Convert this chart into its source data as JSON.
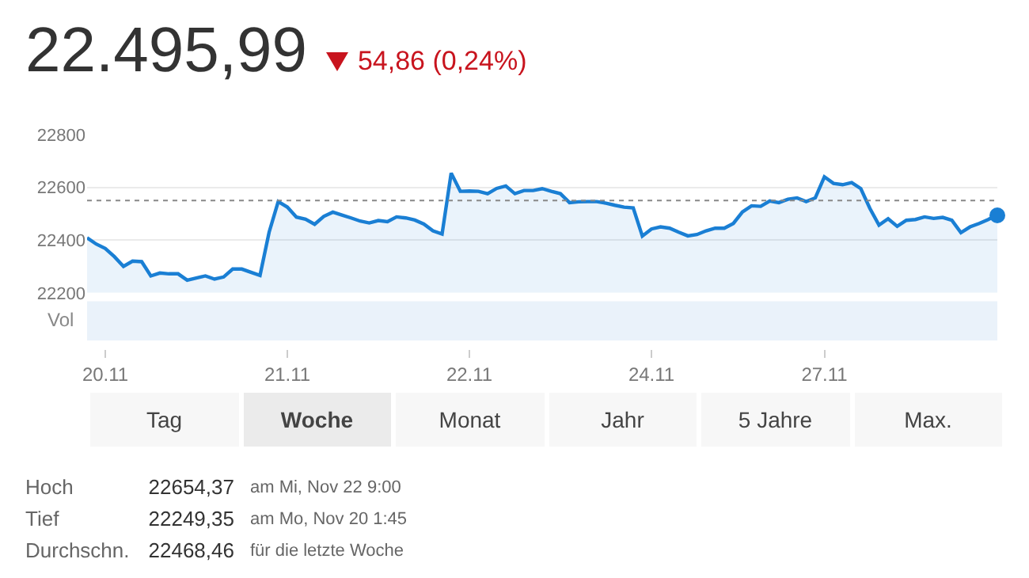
{
  "chart_data": {
    "type": "area",
    "title": "22.495,99",
    "subtitle": "54,86 (0,24%)",
    "categories": [
      null,
      null,
      "20.11",
      null,
      null,
      null,
      null,
      null,
      null,
      null,
      null,
      null,
      null,
      null,
      null,
      null,
      null,
      null,
      null,
      null,
      null,
      null,
      "21.11",
      null,
      null,
      null,
      null,
      null,
      null,
      null,
      null,
      null,
      null,
      null,
      null,
      null,
      null,
      null,
      null,
      null,
      null,
      null,
      "22.11",
      null,
      null,
      null,
      null,
      null,
      null,
      null,
      null,
      null,
      null,
      null,
      null,
      null,
      null,
      null,
      null,
      null,
      null,
      null,
      "24.11",
      null,
      null,
      null,
      null,
      null,
      null,
      null,
      null,
      null,
      null,
      null,
      null,
      null,
      null,
      null,
      null,
      null,
      null,
      "27.11",
      null,
      null,
      null,
      null,
      null,
      null,
      null,
      null,
      null,
      null,
      null,
      null,
      null,
      null,
      null,
      null,
      null,
      null,
      null
    ],
    "series": [
      {
        "color": "#1a7fd4",
        "values": [
          22409,
          22385,
          22368,
          22337,
          22300,
          22320,
          22318,
          22264,
          22275,
          22272,
          22272,
          22248,
          22256,
          22264,
          22252,
          22260,
          22290,
          22290,
          22278,
          22266,
          22430,
          22546,
          22525,
          22487,
          22479,
          22460,
          22490,
          22506,
          22495,
          22484,
          22472,
          22465,
          22474,
          22470,
          22488,
          22484,
          22476,
          22461,
          22435,
          22423,
          22654,
          22585,
          22586,
          22585,
          22576,
          22596,
          22605,
          22576,
          22588,
          22588,
          22595,
          22585,
          22576,
          22542,
          22545,
          22546,
          22546,
          22540,
          22532,
          22525,
          22522,
          22415,
          22442,
          22450,
          22445,
          22430,
          22416,
          22421,
          22435,
          22445,
          22445,
          22463,
          22507,
          22530,
          22528,
          22548,
          22542,
          22555,
          22560,
          22546,
          22560,
          22640,
          22615,
          22610,
          22618,
          22595,
          22520,
          22457,
          22481,
          22452,
          22475,
          22478,
          22488,
          22482,
          22486,
          22475,
          22428,
          22450,
          22463,
          22478,
          22496
        ]
      }
    ],
    "ylim": [
      22200,
      22800
    ],
    "yticks": [
      22200,
      22400,
      22600,
      22800
    ],
    "grid": "y",
    "ref_lines": [
      {
        "axis": "y",
        "value": 22550,
        "color": "#888888",
        "line_style": "dotted"
      }
    ],
    "annotations": [
      "Vol",
      "Tag",
      "Woche",
      "Monat",
      "Jahr",
      "5 Jahre",
      "Max.",
      "Hoch",
      "22654,37",
      "am Mi, Nov 22 9:00",
      "Tief",
      "22249,35",
      "am Mo, Nov 20 1:45",
      "Durchschn.",
      "22468,46",
      "für die letzte Woche"
    ]
  }
}
